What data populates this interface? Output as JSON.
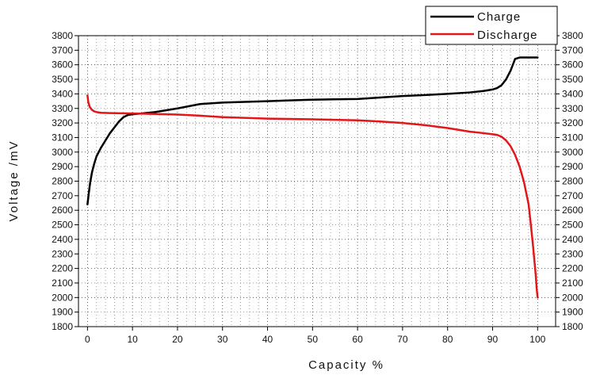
{
  "chart_data": {
    "type": "line",
    "title": "",
    "xlabel": "Capacity  %",
    "ylabel": "Voltage /mV",
    "xlim": [
      -2,
      104
    ],
    "ylim": [
      1800,
      3800
    ],
    "xticks": [
      0,
      10,
      20,
      30,
      40,
      50,
      60,
      70,
      80,
      90,
      100
    ],
    "yticks": [
      1800,
      1900,
      2000,
      2100,
      2200,
      2300,
      2400,
      2500,
      2600,
      2700,
      2800,
      2900,
      3000,
      3100,
      3200,
      3300,
      3400,
      3500,
      3600,
      3700,
      3800
    ],
    "grid": true,
    "legend_position": "top-right",
    "series": [
      {
        "name": "Charge",
        "color": "#000000",
        "x": [
          0,
          0.3,
          0.6,
          1,
          1.5,
          2,
          3,
          4,
          5,
          6,
          7,
          8,
          9,
          10,
          12,
          15,
          20,
          25,
          30,
          35,
          40,
          45,
          50,
          55,
          60,
          65,
          70,
          75,
          80,
          85,
          88,
          90,
          91,
          92,
          93,
          94,
          95,
          96,
          97,
          98,
          99,
          100
        ],
        "y": [
          2640,
          2720,
          2790,
          2860,
          2920,
          2970,
          3030,
          3080,
          3130,
          3170,
          3210,
          3240,
          3255,
          3260,
          3265,
          3275,
          3300,
          3330,
          3340,
          3345,
          3350,
          3355,
          3360,
          3363,
          3365,
          3375,
          3385,
          3392,
          3400,
          3410,
          3420,
          3430,
          3440,
          3460,
          3500,
          3560,
          3640,
          3650,
          3650,
          3650,
          3650,
          3650
        ]
      },
      {
        "name": "Discharge",
        "color": "#e3161a",
        "x": [
          0,
          0.2,
          0.5,
          1,
          1.5,
          2,
          3,
          5,
          10,
          15,
          20,
          25,
          30,
          40,
          50,
          60,
          65,
          70,
          75,
          80,
          85,
          88,
          90,
          91,
          92,
          93,
          94,
          95,
          96,
          97,
          98,
          98.5,
          99,
          99.3,
          99.6,
          99.8,
          100
        ],
        "y": [
          3390,
          3340,
          3310,
          3290,
          3280,
          3275,
          3270,
          3268,
          3265,
          3262,
          3258,
          3250,
          3240,
          3230,
          3225,
          3218,
          3210,
          3200,
          3185,
          3165,
          3140,
          3130,
          3122,
          3118,
          3105,
          3080,
          3040,
          2980,
          2900,
          2790,
          2640,
          2500,
          2350,
          2250,
          2150,
          2060,
          2000
        ]
      }
    ]
  }
}
